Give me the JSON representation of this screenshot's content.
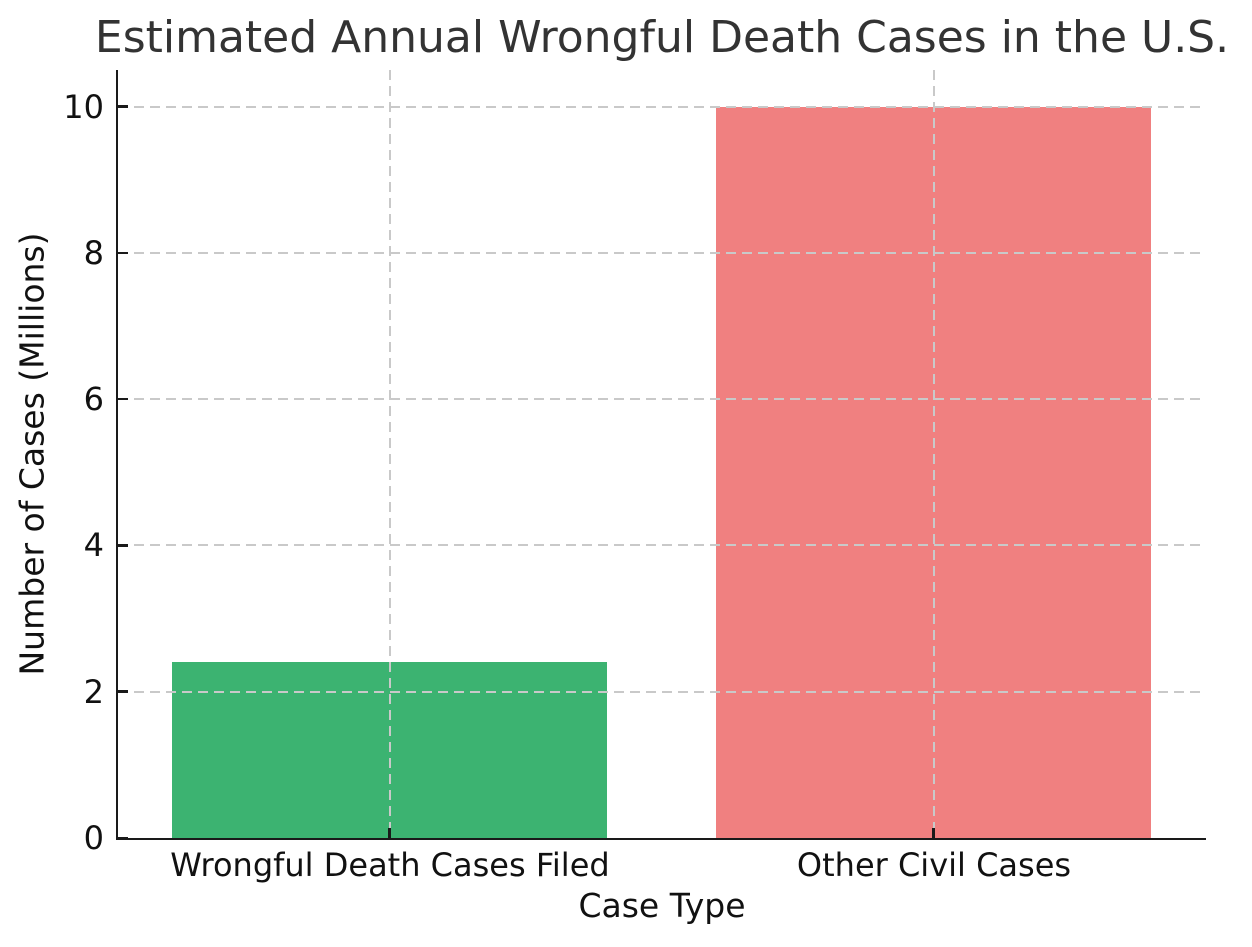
{
  "chart_data": {
    "type": "bar",
    "title": "Estimated Annual Wrongful Death Cases in the U.S.",
    "xlabel": "Case Type",
    "ylabel": "Number of Cases (Millions)",
    "categories": [
      "Wrongful Death Cases Filed",
      "Other Civil Cases"
    ],
    "values": [
      2.4,
      10
    ],
    "bar_colors": [
      "#3cb371",
      "#f08080"
    ],
    "bar_width_fraction": 0.8,
    "ylim": [
      0,
      10.5
    ],
    "yticks": [
      0,
      2,
      4,
      6,
      8,
      10
    ],
    "grid": {
      "visible": true,
      "line_style": "dashed",
      "color": "#c9c9c9",
      "drawn_above_bars": true,
      "vertical_at_category_centers": true
    },
    "legend_position": "none",
    "styling": {
      "spine_color": "#1a1a1a",
      "spines_visible": [
        "left",
        "bottom"
      ],
      "tick_direction": "in",
      "title_color": "#333333",
      "label_color": "#111111",
      "background_color": "#ffffff"
    }
  }
}
